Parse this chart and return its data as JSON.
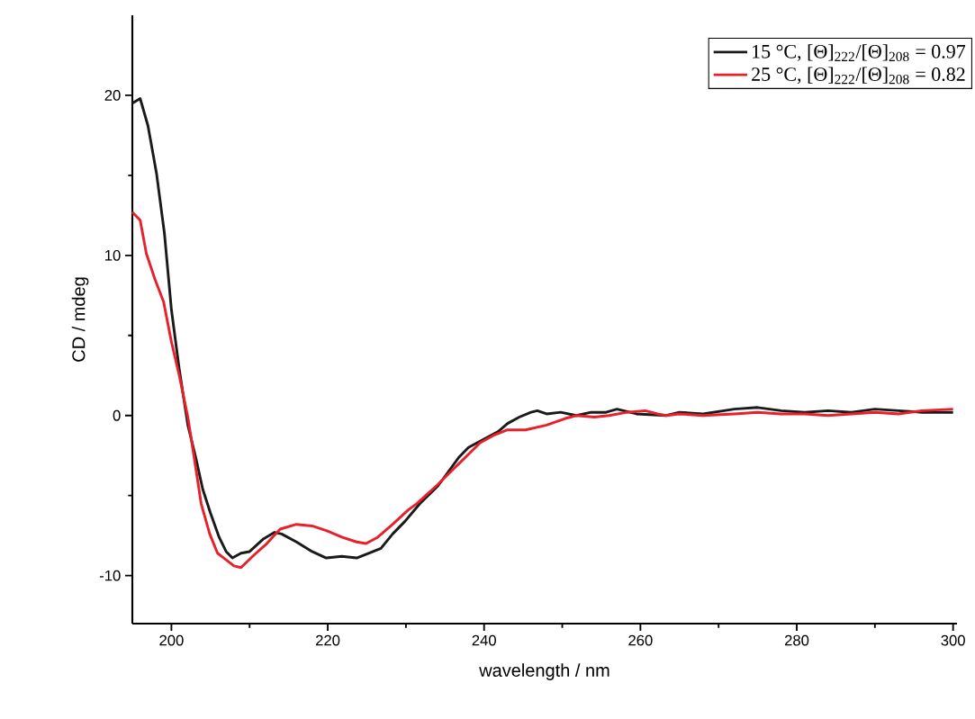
{
  "chart_data": {
    "type": "line",
    "xlabel": "wavelength / nm",
    "ylabel": "CD / mdeg",
    "xlim": [
      195,
      300.5
    ],
    "xticks": [
      200,
      220,
      240,
      260,
      280,
      300
    ],
    "ylim": [
      -13,
      25
    ],
    "yticks": [
      -10,
      0,
      10,
      20
    ],
    "grid": false,
    "legend": "top right",
    "marker": "none",
    "line_style": "solid",
    "series": [
      {
        "name": "15 °C,  [Θ]$_{222}$/[Θ]$_{208}$ = 0.97",
        "color": "#1a1a1a",
        "x": [
          195,
          196,
          197,
          198.1,
          199.1,
          200,
          201,
          202.1,
          203.1,
          204,
          205,
          206.1,
          207,
          207.8,
          208.9,
          210,
          211.8,
          213.2,
          214.1,
          216,
          218,
          219.8,
          221.8,
          223.7,
          225.3,
          226.8,
          228.3,
          229.9,
          231.8,
          234.1,
          236.8,
          238,
          239.9,
          241.8,
          243,
          244.5,
          246,
          246.8,
          248,
          249.8,
          251.8,
          253.7,
          255.6,
          257,
          259.5,
          263.3,
          265,
          268,
          272,
          275,
          278,
          281,
          284,
          287,
          290,
          293,
          296,
          300
        ],
        "values": [
          19.5,
          19.8,
          18.1,
          15.1,
          11.4,
          6.6,
          2.9,
          -0.6,
          -2.6,
          -4.6,
          -6.1,
          -7.6,
          -8.5,
          -8.9,
          -8.6,
          -8.5,
          -7.7,
          -7.3,
          -7.4,
          -7.9,
          -8.5,
          -8.9,
          -8.8,
          -8.9,
          -8.6,
          -8.3,
          -7.4,
          -6.6,
          -5.5,
          -4.4,
          -2.6,
          -2.0,
          -1.5,
          -1.0,
          -0.5,
          -0.1,
          0.2,
          0.3,
          0.1,
          0.2,
          0.0,
          0.2,
          0.2,
          0.4,
          0.1,
          0.0,
          0.2,
          0.1,
          0.4,
          0.5,
          0.3,
          0.2,
          0.3,
          0.2,
          0.4,
          0.3,
          0.2,
          0.2
        ]
      },
      {
        "name": "25 °C,  [Θ]$_{222}$/[Θ]$_{208}$ = 0.82",
        "color": "#e8202a",
        "x": [
          195,
          196,
          196.8,
          197.9,
          199,
          200,
          201,
          202.1,
          202.9,
          203.8,
          204.9,
          205.9,
          206.7,
          208,
          208.9,
          210.6,
          212.2,
          213.9,
          216,
          218,
          219.9,
          221.8,
          223.7,
          224.9,
          226.4,
          228.3,
          230.3,
          231.4,
          234.1,
          236.8,
          239.5,
          241.4,
          243,
          245.3,
          248,
          250.3,
          251.8,
          254.1,
          256,
          258.3,
          260.6,
          262.2,
          263.3,
          265,
          268,
          272,
          275,
          278,
          281,
          284,
          287,
          290,
          293,
          296,
          300
        ],
        "values": [
          12.7,
          12.2,
          10.1,
          8.5,
          7.1,
          4.6,
          2.5,
          -0.1,
          -2.6,
          -5.5,
          -7.4,
          -8.6,
          -8.9,
          -9.4,
          -9.5,
          -8.7,
          -8.0,
          -7.1,
          -6.8,
          -6.9,
          -7.2,
          -7.6,
          -7.9,
          -8.0,
          -7.6,
          -6.8,
          -5.9,
          -5.5,
          -4.3,
          -3.0,
          -1.7,
          -1.2,
          -0.9,
          -0.9,
          -0.6,
          -0.2,
          0.0,
          -0.1,
          0.0,
          0.2,
          0.3,
          0.1,
          0.0,
          0.1,
          0.0,
          0.1,
          0.2,
          0.1,
          0.1,
          0.0,
          0.1,
          0.2,
          0.1,
          0.3,
          0.4
        ]
      }
    ]
  }
}
